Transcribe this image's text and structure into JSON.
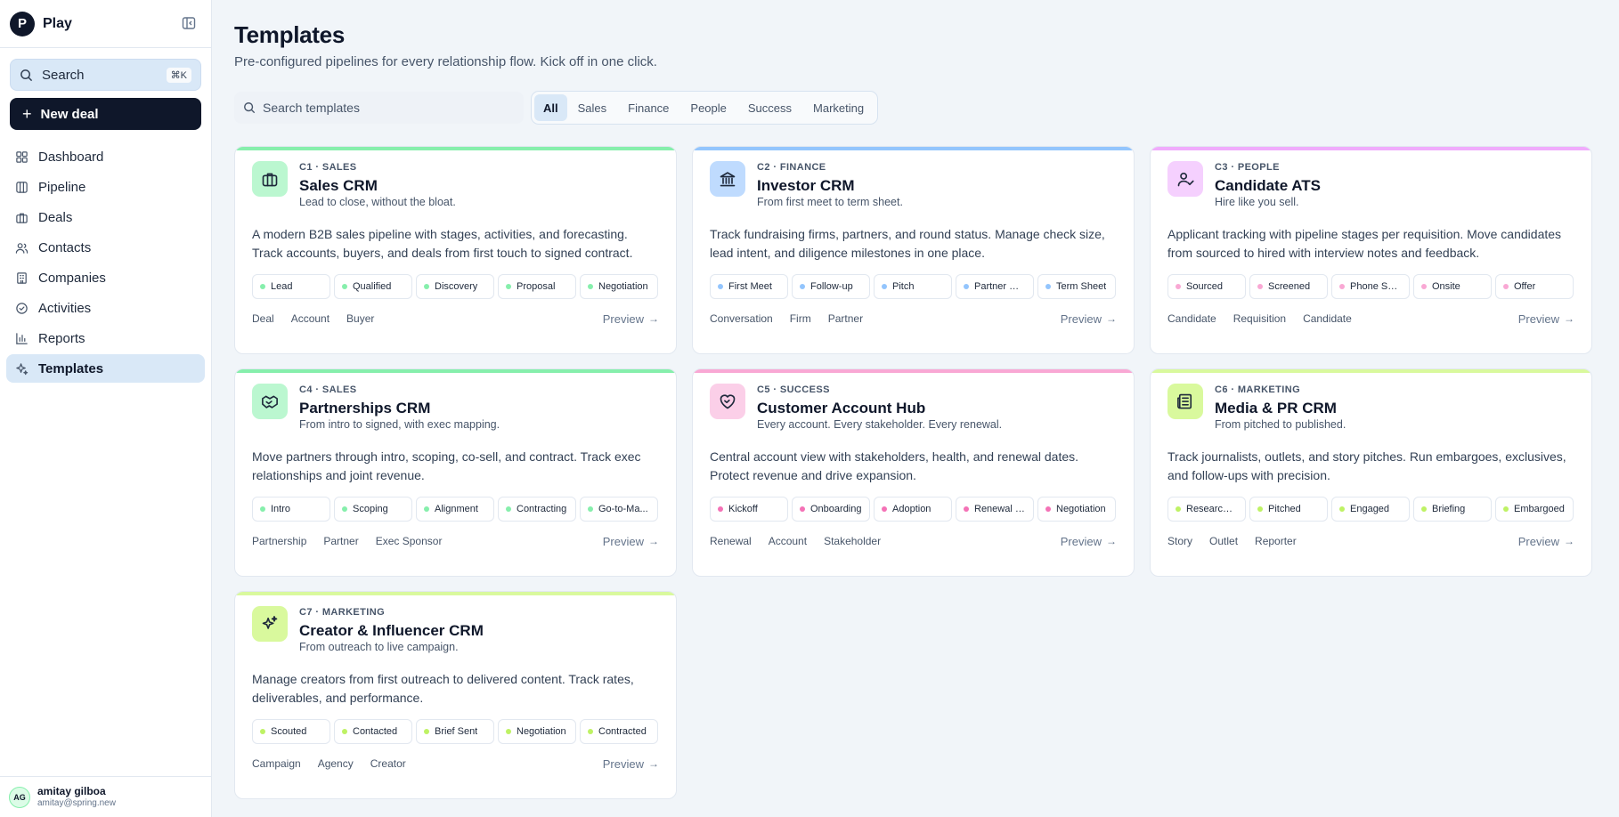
{
  "brand": {
    "logo_letter": "P",
    "name": "Play"
  },
  "sidebar": {
    "search_label": "Search",
    "search_shortcut": "⌘K",
    "new_deal_label": "New deal",
    "items": [
      {
        "label": "Dashboard",
        "icon": "dashboard-icon"
      },
      {
        "label": "Pipeline",
        "icon": "pipeline-icon"
      },
      {
        "label": "Deals",
        "icon": "briefcase-icon"
      },
      {
        "label": "Contacts",
        "icon": "users-icon"
      },
      {
        "label": "Companies",
        "icon": "building-icon"
      },
      {
        "label": "Activities",
        "icon": "check-circle-icon"
      },
      {
        "label": "Reports",
        "icon": "bar-chart-icon"
      },
      {
        "label": "Templates",
        "icon": "sparkle-icon",
        "active": true
      }
    ]
  },
  "user": {
    "initials": "AG",
    "name": "amitay gilboa",
    "email": "amitay@spring.new"
  },
  "page": {
    "title": "Templates",
    "subtitle": "Pre-configured pipelines for every relationship flow. Kick off in one click."
  },
  "filters": {
    "search_placeholder": "Search templates",
    "tabs": [
      "All",
      "Sales",
      "Finance",
      "People",
      "Success",
      "Marketing"
    ],
    "active_tab": "All"
  },
  "templates": [
    {
      "code": "C1 · SALES",
      "name": "Sales CRM",
      "tagline": "Lead to close, without the bloat.",
      "description": "A modern B2B sales pipeline with stages, activities, and forecasting. Track accounts, buyers, and deals from first touch to signed contract.",
      "stages": [
        "Lead",
        "Qualified",
        "Discovery",
        "Proposal",
        "Negotiation"
      ],
      "objects": [
        "Deal",
        "Account",
        "Buyer"
      ],
      "preview_label": "Preview",
      "accent": "#86efac",
      "icon_bg": "#bbf7d0",
      "dot": "#86efac",
      "icon": "briefcase-icon"
    },
    {
      "code": "C2 · FINANCE",
      "name": "Investor CRM",
      "tagline": "From first meet to term sheet.",
      "description": "Track fundraising firms, partners, and round status. Manage check size, lead intent, and diligence milestones in one place.",
      "stages": [
        "First Meet",
        "Follow-up",
        "Pitch",
        "Partner Me...",
        "Term Sheet"
      ],
      "objects": [
        "Conversation",
        "Firm",
        "Partner"
      ],
      "preview_label": "Preview",
      "accent": "#93c5fd",
      "icon_bg": "#bfdbfe",
      "dot": "#93c5fd",
      "icon": "bank-icon"
    },
    {
      "code": "C3 · PEOPLE",
      "name": "Candidate ATS",
      "tagline": "Hire like you sell.",
      "description": "Applicant tracking with pipeline stages per requisition. Move candidates from sourced to hired with interview notes and feedback.",
      "stages": [
        "Sourced",
        "Screened",
        "Phone Scr...",
        "Onsite",
        "Offer"
      ],
      "objects": [
        "Candidate",
        "Requisition",
        "Candidate"
      ],
      "preview_label": "Preview",
      "accent": "#f0abfc",
      "icon_bg": "#f5d0fe",
      "dot": "#f9a8d4",
      "icon": "user-check-icon"
    },
    {
      "code": "C4 · SALES",
      "name": "Partnerships CRM",
      "tagline": "From intro to signed, with exec mapping.",
      "description": "Move partners through intro, scoping, co-sell, and contract. Track exec relationships and joint revenue.",
      "stages": [
        "Intro",
        "Scoping",
        "Alignment",
        "Contracting",
        "Go-to-Ma..."
      ],
      "objects": [
        "Partnership",
        "Partner",
        "Exec Sponsor"
      ],
      "preview_label": "Preview",
      "accent": "#86efac",
      "icon_bg": "#bbf7d0",
      "dot": "#86efac",
      "icon": "handshake-icon"
    },
    {
      "code": "C5 · SUCCESS",
      "name": "Customer Account Hub",
      "tagline": "Every account. Every stakeholder. Every renewal.",
      "description": "Central account view with stakeholders, health, and renewal dates. Protect revenue and drive expansion.",
      "stages": [
        "Kickoff",
        "Onboarding",
        "Adoption",
        "Renewal Pr...",
        "Negotiation"
      ],
      "objects": [
        "Renewal",
        "Account",
        "Stakeholder"
      ],
      "preview_label": "Preview",
      "accent": "#f9a8d4",
      "icon_bg": "#fbcfe8",
      "dot": "#f472b6",
      "icon": "heart-handshake-icon"
    },
    {
      "code": "C6 · MARKETING",
      "name": "Media & PR CRM",
      "tagline": "From pitched to published.",
      "description": "Track journalists, outlets, and story pitches. Run embargoes, exclusives, and follow-ups with precision.",
      "stages": [
        "Researching",
        "Pitched",
        "Engaged",
        "Briefing",
        "Embargoed"
      ],
      "objects": [
        "Story",
        "Outlet",
        "Reporter"
      ],
      "preview_label": "Preview",
      "accent": "#d9f99d",
      "icon_bg": "#d9f99d",
      "dot": "#bef264",
      "icon": "newspaper-icon"
    },
    {
      "code": "C7 · MARKETING",
      "name": "Creator & Influencer CRM",
      "tagline": "From outreach to live campaign.",
      "description": "Manage creators from first outreach to delivered content. Track rates, deliverables, and performance.",
      "stages": [
        "Scouted",
        "Contacted",
        "Brief Sent",
        "Negotiation",
        "Contracted"
      ],
      "objects": [
        "Campaign",
        "Agency",
        "Creator"
      ],
      "preview_label": "Preview",
      "accent": "#d9f99d",
      "icon_bg": "#d9f99d",
      "dot": "#bef264",
      "icon": "sparkles-icon"
    }
  ]
}
